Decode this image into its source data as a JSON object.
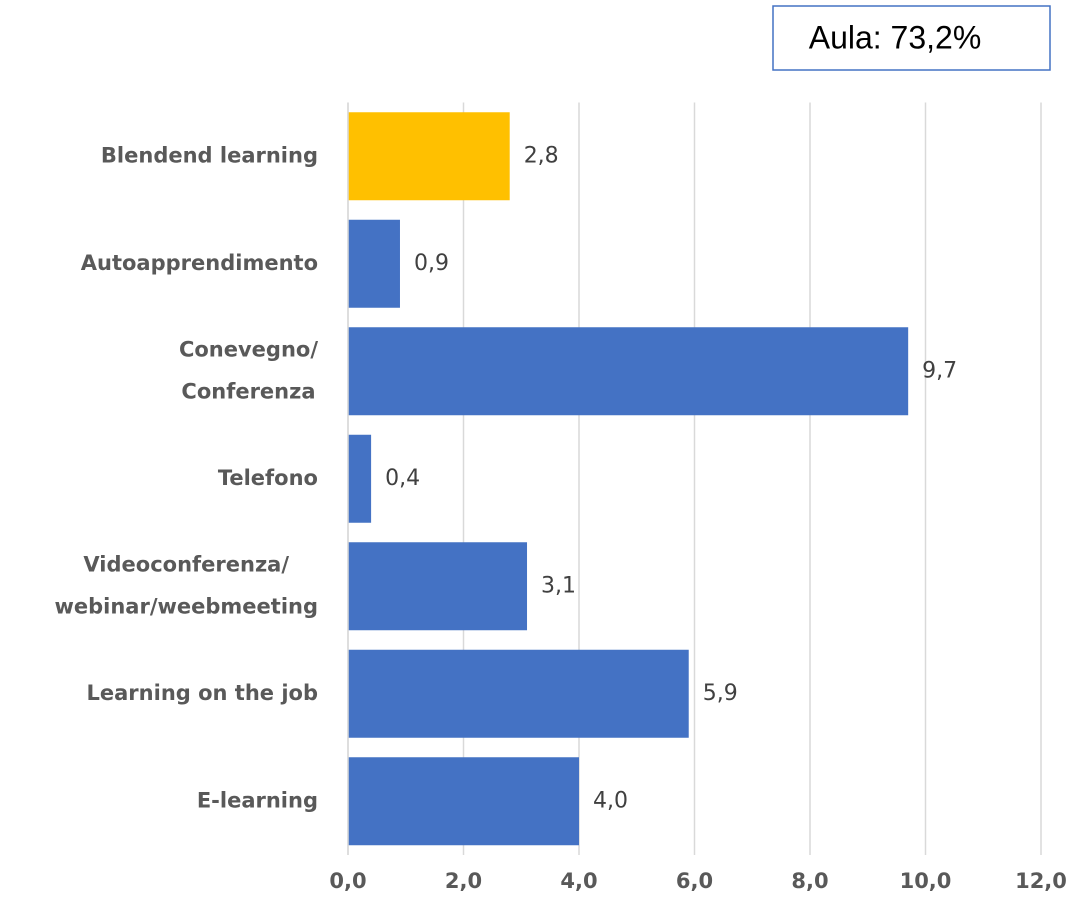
{
  "chart_data": {
    "type": "bar",
    "orientation": "horizontal",
    "annotation": "Aula: 73,2%",
    "categories": [
      "Blendend learning",
      "Autoapprendimento",
      [
        "Conevegno/",
        "Conferenza"
      ],
      "Telefono",
      [
        "Videoconferenza/",
        "webinar/weebmeeting"
      ],
      "Learning on the job",
      "E-learning"
    ],
    "values": [
      2.8,
      0.9,
      9.7,
      0.4,
      3.1,
      5.9,
      4.0
    ],
    "value_labels": [
      "2,8",
      "0,9",
      "9,7",
      "0,4",
      "3,1",
      "5,9",
      "4,0"
    ],
    "colors": [
      "#ffc000",
      "#4472c4",
      "#4472c4",
      "#4472c4",
      "#4472c4",
      "#4472c4",
      "#4472c4"
    ],
    "xlim": [
      0,
      12
    ],
    "xticks": [
      {
        "value": 0,
        "label": "0,0"
      },
      {
        "value": 2,
        "label": "2,0"
      },
      {
        "value": 4,
        "label": "4,0"
      },
      {
        "value": 6,
        "label": "6,0"
      },
      {
        "value": 8,
        "label": "8,0"
      },
      {
        "value": 10,
        "label": "10,0"
      },
      {
        "value": 12,
        "label": "12,0"
      }
    ],
    "grid": true
  }
}
